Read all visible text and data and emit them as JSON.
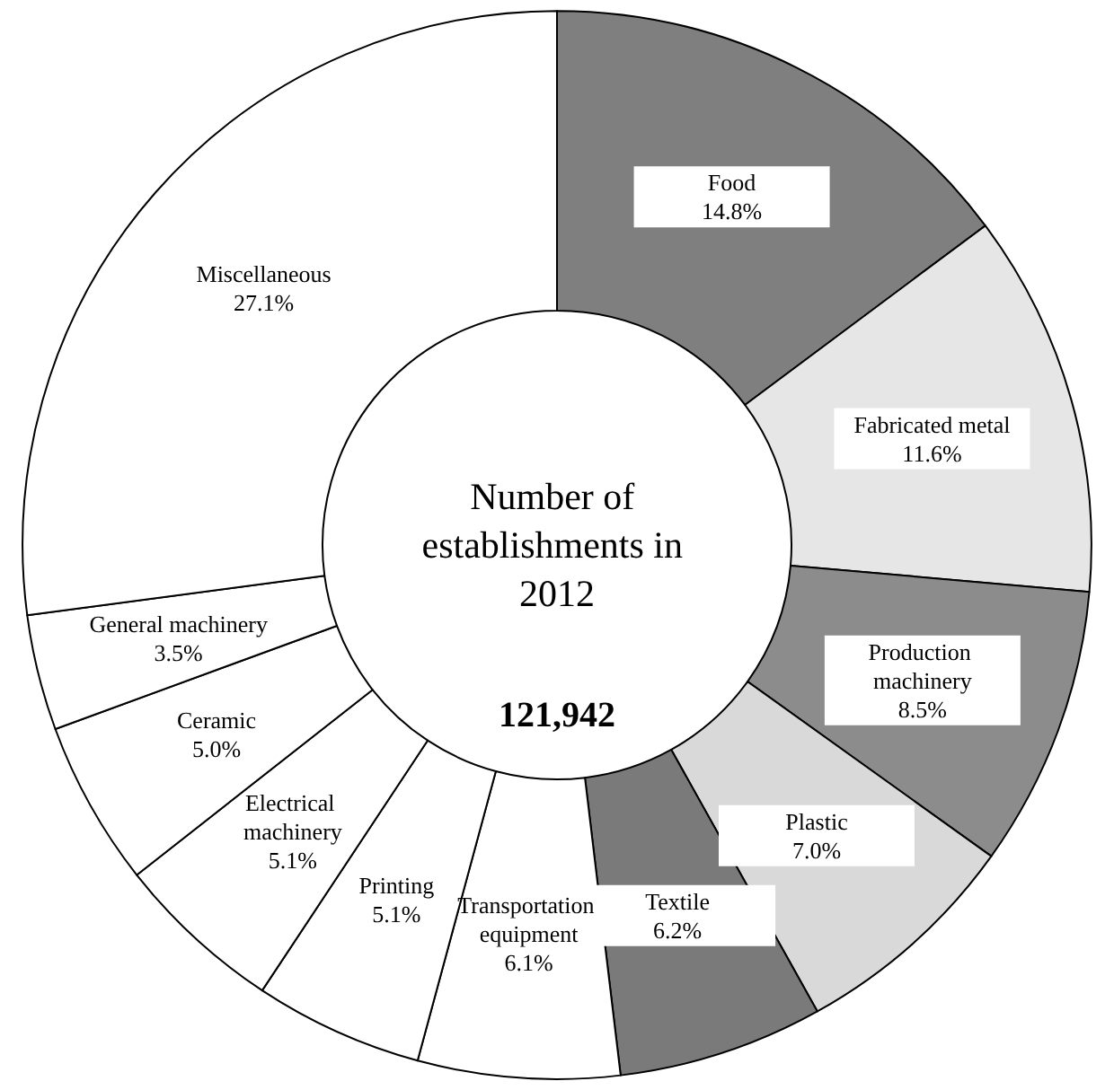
{
  "chart_data": {
    "type": "donut",
    "title": "Number of establishments in 2012",
    "subtitle": "121,942",
    "categories": [
      "Food",
      "Fabricated metal",
      "Production machinery",
      "Plastic",
      "Textile",
      "Transportation equipment",
      "Printing",
      "Electrical machinery",
      "Ceramic",
      "General machinery",
      "Miscellaneous"
    ],
    "values": [
      14.8,
      11.6,
      8.5,
      7.0,
      6.2,
      6.1,
      5.1,
      5.1,
      5.0,
      3.5,
      27.1
    ],
    "value_labels": [
      "14.8%",
      "11.6%",
      "8.5%",
      "7.0%",
      "6.2%",
      "6.1%",
      "5.1%",
      "5.1%",
      "5.0%",
      "3.5%",
      "27.1%"
    ],
    "colors": [
      "#7f7f7f",
      "#e6e6e6",
      "#8c8c8c",
      "#d9d9d9",
      "#7a7a7a",
      "#ffffff",
      "#ffffff",
      "#ffffff",
      "#ffffff",
      "#ffffff",
      "#ffffff"
    ],
    "legend": false
  }
}
